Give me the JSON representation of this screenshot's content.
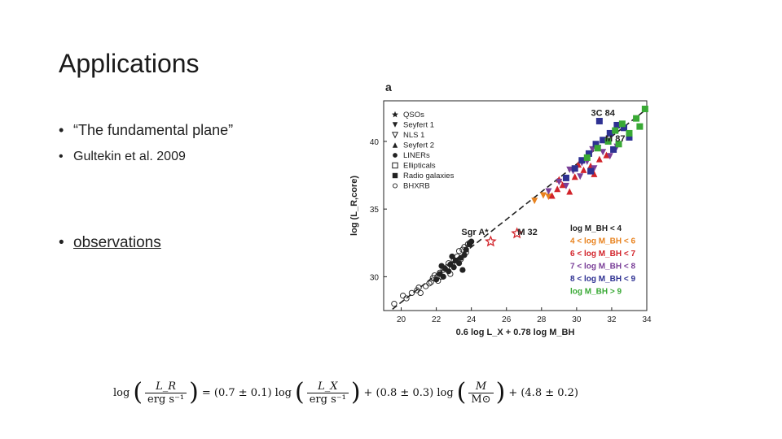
{
  "slide": {
    "title": "Applications",
    "bullets": [
      {
        "marker": "•",
        "text": "“The fundamental plane”"
      },
      {
        "marker": "•",
        "text": "Gultekin et al. 2009"
      },
      {
        "marker": "•",
        "text": "observations"
      }
    ],
    "formula": {
      "lhs_func": "log",
      "lhs_num": "L_R",
      "lhs_den": "erg s⁻¹",
      "eq": "= (0.7 ± 0.1) log",
      "x_num": "L_X",
      "x_den": "erg s⁻¹",
      "mid": "+ (0.8 ± 0.3) log",
      "m_num": "M",
      "m_den": "M⊙",
      "tail": "+ (4.8 ± 0.2)"
    }
  },
  "chart_data": {
    "type": "scatter",
    "panel_label": "a",
    "xlabel": "0.6 log L_X + 0.78 log M_BH",
    "ylabel": "log (L_R,core)",
    "xlim": [
      19,
      34
    ],
    "ylim": [
      27.5,
      43
    ],
    "xticks": [
      20,
      22,
      24,
      26,
      28,
      30,
      32,
      34
    ],
    "yticks": [
      30,
      35,
      40
    ],
    "fit_line": {
      "x": [
        19.5,
        34
      ],
      "y": [
        27.6,
        42.4
      ]
    },
    "legend_position": "top-left",
    "marker_legend": [
      {
        "label": "QSOs",
        "marker": "star"
      },
      {
        "label": "Seyfert 1",
        "marker": "triangle-down-filled"
      },
      {
        "label": "NLS 1",
        "marker": "triangle-down-open"
      },
      {
        "label": "Seyfert 2",
        "marker": "triangle-up-filled"
      },
      {
        "label": "LINERs",
        "marker": "circle-filled"
      },
      {
        "label": "Ellipticals",
        "marker": "square-open"
      },
      {
        "label": "Radio galaxies",
        "marker": "square-filled"
      },
      {
        "label": "BHXRB",
        "marker": "circle-open"
      }
    ],
    "mass_legend": [
      {
        "label": "log M_BH < 4",
        "color": "#222222"
      },
      {
        "label": "4 < log M_BH < 6",
        "color": "#e8821e"
      },
      {
        "label": "6 < log M_BH < 7",
        "color": "#d2232a"
      },
      {
        "label": "7 < log M_BH < 8",
        "color": "#7a3f98"
      },
      {
        "label": "8 < log M_BH < 9",
        "color": "#2e3192"
      },
      {
        "label": "log M_BH > 9",
        "color": "#39a935"
      }
    ],
    "annotations": [
      {
        "text": "3C 84",
        "x": 31.5,
        "y": 41.9
      },
      {
        "text": "M 87",
        "x": 32.2,
        "y": 40.0
      },
      {
        "text": "Sgr A*",
        "x": 24.2,
        "y": 33.1
      },
      {
        "text": "M 32",
        "x": 27.2,
        "y": 33.1
      }
    ],
    "series": [
      {
        "name": "BHXRB",
        "marker": "circle-open",
        "color": "#222222",
        "x": [
          19.6,
          20.1,
          20.6,
          20.9,
          21.1,
          21.4,
          21.6,
          21.8,
          21.9,
          22.1,
          22.2,
          22.4,
          22.6,
          22.7,
          22.9,
          23.0,
          23.2,
          23.3,
          23.5,
          23.6,
          23.8,
          23.9,
          20.3,
          21.0,
          21.7,
          22.3,
          22.8,
          23.4,
          23.7
        ],
        "y": [
          28.0,
          28.6,
          28.8,
          29.0,
          28.8,
          29.3,
          29.5,
          29.9,
          30.1,
          29.7,
          30.3,
          30.5,
          30.7,
          31.0,
          30.9,
          31.2,
          31.5,
          31.9,
          32.0,
          32.2,
          32.4,
          32.5,
          28.4,
          29.2,
          29.6,
          30.0,
          30.2,
          31.3,
          31.8
        ]
      },
      {
        "name": "LINERs",
        "marker": "circle-filled",
        "color": "#222222",
        "x": [
          22.0,
          22.2,
          22.4,
          22.5,
          22.7,
          22.8,
          23.0,
          23.1,
          23.3,
          23.4,
          23.6,
          23.7,
          23.9,
          24.0,
          22.3,
          22.9,
          23.5
        ],
        "y": [
          29.8,
          30.2,
          30.0,
          30.6,
          30.4,
          30.9,
          30.7,
          31.2,
          31.0,
          31.4,
          31.6,
          32.0,
          32.4,
          32.6,
          30.8,
          31.5,
          30.5
        ]
      },
      {
        "name": "Sgr A* / M 32",
        "marker": "star-open",
        "color": "#d2232a",
        "x": [
          25.1,
          26.6
        ],
        "y": [
          32.6,
          33.2
        ]
      },
      {
        "name": "4 < log M_BH < 6",
        "marker": "triangle-down-filled",
        "color": "#e8821e",
        "x": [
          27.6,
          28.1,
          28.4
        ],
        "y": [
          35.6,
          36.0,
          35.9
        ]
      },
      {
        "name": "6 < log M_BH < 7",
        "marker": "triangle-up-filled",
        "color": "#d2232a",
        "x": [
          28.6,
          29.2,
          29.6,
          29.9,
          30.4,
          30.8,
          31.3,
          31.7,
          29.0,
          30.1,
          31.0,
          28.9
        ],
        "y": [
          36.0,
          36.8,
          36.3,
          37.4,
          37.9,
          38.2,
          38.7,
          39.0,
          37.2,
          38.3,
          37.6,
          36.5
        ]
      },
      {
        "name": "7 < log M_BH < 8",
        "marker": "triangle-down-filled",
        "color": "#7a3f98",
        "x": [
          28.4,
          29.0,
          29.4,
          29.8,
          30.2,
          30.6,
          31.0,
          31.5,
          31.9,
          32.3,
          29.6,
          30.9,
          30.3
        ],
        "y": [
          36.3,
          37.0,
          36.7,
          37.8,
          37.4,
          38.5,
          38.0,
          39.2,
          38.9,
          39.6,
          37.9,
          39.4,
          38.4
        ]
      },
      {
        "name": "8 < log M_BH < 9",
        "marker": "square-filled",
        "color": "#2e3192",
        "x": [
          29.4,
          29.9,
          30.3,
          30.7,
          31.1,
          31.5,
          31.9,
          32.3,
          32.7,
          33.0,
          31.3,
          32.1,
          30.8
        ],
        "y": [
          37.3,
          38.0,
          38.6,
          39.1,
          39.8,
          40.1,
          40.6,
          41.2,
          41.0,
          40.3,
          41.5,
          39.4,
          37.8
        ]
      },
      {
        "name": "log M_BH > 9",
        "marker": "square-filled",
        "color": "#39a935",
        "x": [
          30.6,
          31.2,
          31.8,
          32.2,
          32.6,
          33.0,
          33.4,
          33.9,
          32.4,
          33.6
        ],
        "y": [
          38.8,
          39.5,
          40.0,
          40.8,
          41.3,
          40.6,
          41.7,
          42.4,
          39.8,
          41.1
        ]
      }
    ]
  }
}
